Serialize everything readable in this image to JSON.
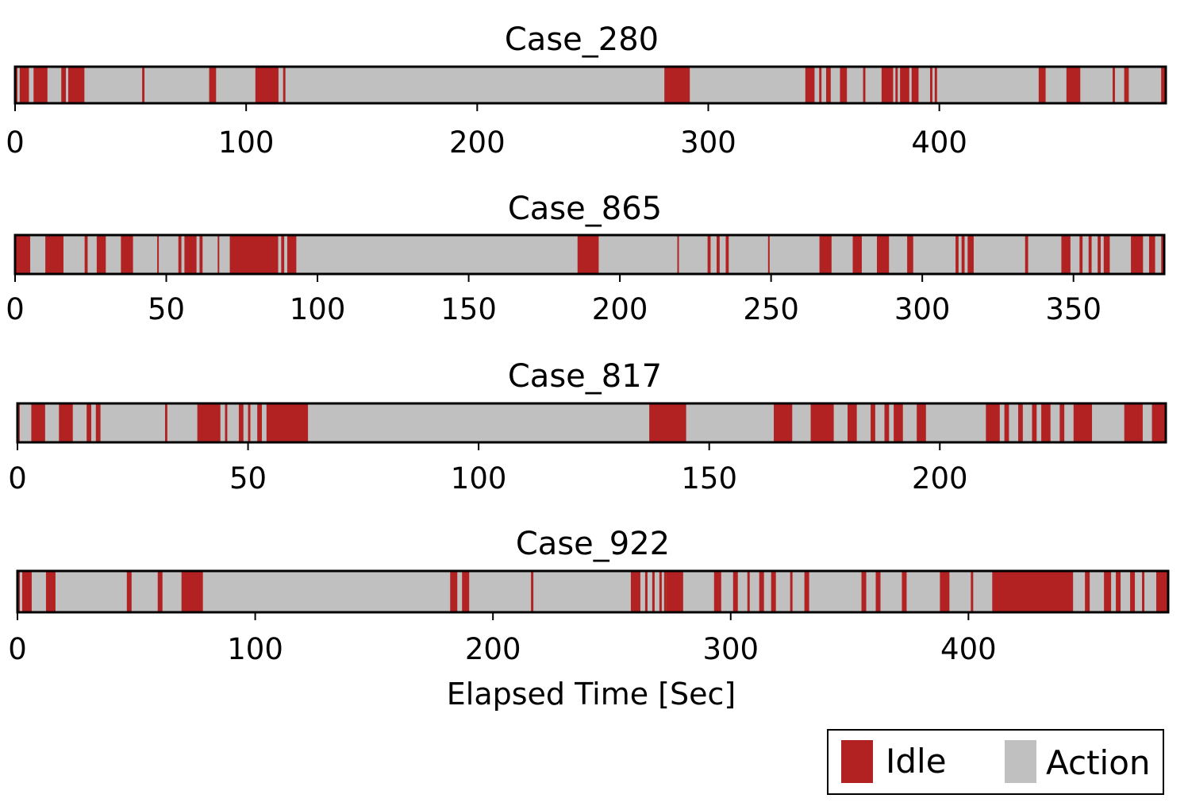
{
  "chart_data": {
    "type": "timeline",
    "xlabel": "Elapsed Time [Sec]",
    "colors": {
      "idle": "#b22222",
      "action": "#c0c0c0"
    },
    "legend": {
      "placement": "bottom-right",
      "entries": [
        {
          "key": "idle",
          "label": "Idle"
        },
        {
          "key": "action",
          "label": "Action"
        }
      ]
    },
    "panels": [
      {
        "title": "Case_280",
        "xlim": [
          0,
          498
        ],
        "ticks": [
          0,
          100,
          200,
          300,
          400
        ],
        "tick_labels": [
          "0",
          "100",
          "200",
          "300",
          "400"
        ],
        "idle_intervals": [
          [
            0,
            1
          ],
          [
            2,
            6
          ],
          [
            8,
            14
          ],
          [
            20,
            22
          ],
          [
            23,
            30
          ],
          [
            55,
            56
          ],
          [
            84,
            87
          ],
          [
            104,
            114
          ],
          [
            116,
            117
          ],
          [
            281,
            292
          ],
          [
            342,
            346
          ],
          [
            348,
            349
          ],
          [
            351,
            353
          ],
          [
            357,
            360
          ],
          [
            367,
            368
          ],
          [
            375,
            380
          ],
          [
            381,
            382
          ],
          [
            383,
            387
          ],
          [
            388,
            391
          ],
          [
            396,
            397
          ],
          [
            398,
            399
          ],
          [
            443,
            446
          ],
          [
            455,
            461
          ],
          [
            475,
            476
          ],
          [
            480,
            482
          ],
          [
            496,
            498
          ]
        ]
      },
      {
        "title": "Case_865",
        "xlim": [
          0,
          380
        ],
        "ticks": [
          0,
          50,
          100,
          150,
          200,
          250,
          300,
          350
        ],
        "tick_labels": [
          "0",
          "50",
          "100",
          "150",
          "200",
          "250",
          "300",
          "350"
        ],
        "idle_intervals": [
          [
            0,
            5
          ],
          [
            10,
            16
          ],
          [
            23,
            24
          ],
          [
            27,
            30
          ],
          [
            35,
            39
          ],
          [
            47,
            47.5
          ],
          [
            54,
            55
          ],
          [
            56,
            60
          ],
          [
            61,
            62
          ],
          [
            67,
            67.5
          ],
          [
            71,
            87
          ],
          [
            88,
            89
          ],
          [
            90,
            93
          ],
          [
            186,
            193
          ],
          [
            219,
            219.5
          ],
          [
            229,
            230
          ],
          [
            232,
            233
          ],
          [
            235,
            236
          ],
          [
            249,
            249.5
          ],
          [
            266,
            270
          ],
          [
            277,
            280
          ],
          [
            285,
            289
          ],
          [
            295,
            297
          ],
          [
            311,
            312
          ],
          [
            313,
            314
          ],
          [
            315,
            317
          ],
          [
            334,
            335
          ],
          [
            346,
            349
          ],
          [
            352,
            353
          ],
          [
            355,
            356
          ],
          [
            358,
            359
          ],
          [
            360,
            362
          ],
          [
            369,
            373
          ],
          [
            375,
            377
          ],
          [
            379,
            380
          ]
        ]
      },
      {
        "title": "Case_817",
        "xlim": [
          0,
          249
        ],
        "ticks": [
          0,
          50,
          100,
          150,
          200
        ],
        "tick_labels": [
          "0",
          "50",
          "100",
          "150",
          "200"
        ],
        "idle_intervals": [
          [
            0,
            0.5
          ],
          [
            3,
            6
          ],
          [
            9,
            12
          ],
          [
            15,
            16
          ],
          [
            17,
            18
          ],
          [
            32,
            32.5
          ],
          [
            39,
            44
          ],
          [
            45,
            45.5
          ],
          [
            48,
            49
          ],
          [
            50,
            50.5
          ],
          [
            52,
            53
          ],
          [
            54,
            63
          ],
          [
            137,
            145
          ],
          [
            164,
            168
          ],
          [
            172,
            177
          ],
          [
            180,
            182
          ],
          [
            185,
            186
          ],
          [
            188,
            189
          ],
          [
            190,
            192
          ],
          [
            195,
            197
          ],
          [
            210,
            213
          ],
          [
            214,
            215
          ],
          [
            217,
            218
          ],
          [
            220,
            221
          ],
          [
            222,
            224
          ],
          [
            226,
            227
          ],
          [
            229,
            233
          ],
          [
            240,
            244
          ],
          [
            246,
            249
          ]
        ]
      },
      {
        "title": "Case_922",
        "xlim": [
          0,
          484
        ],
        "ticks": [
          0,
          100,
          200,
          300,
          400
        ],
        "tick_labels": [
          "0",
          "100",
          "200",
          "300",
          "400"
        ],
        "idle_intervals": [
          [
            0,
            1
          ],
          [
            2,
            6
          ],
          [
            12,
            16
          ],
          [
            46,
            48
          ],
          [
            59,
            61
          ],
          [
            69,
            78
          ],
          [
            182,
            185
          ],
          [
            187,
            190
          ],
          [
            216,
            217
          ],
          [
            258,
            262
          ],
          [
            264,
            265
          ],
          [
            267,
            268
          ],
          [
            270,
            271
          ],
          [
            272,
            273
          ],
          [
            273,
            280
          ],
          [
            293,
            296
          ],
          [
            301,
            303
          ],
          [
            307,
            308
          ],
          [
            312,
            314
          ],
          [
            317,
            319
          ],
          [
            325,
            326
          ],
          [
            331,
            333
          ],
          [
            355,
            357
          ],
          [
            361,
            363
          ],
          [
            372,
            374
          ],
          [
            388,
            392
          ],
          [
            401,
            402
          ],
          [
            410,
            444
          ],
          [
            449,
            451
          ],
          [
            457,
            460
          ],
          [
            462,
            464
          ],
          [
            468,
            470
          ],
          [
            473,
            474
          ],
          [
            479,
            484
          ]
        ]
      }
    ]
  }
}
